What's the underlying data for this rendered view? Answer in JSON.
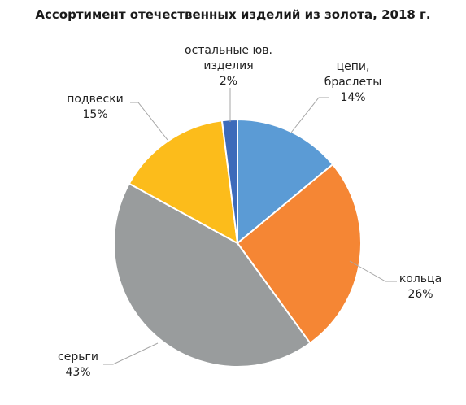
{
  "chart_data": {
    "type": "pie",
    "title": "Ассортимент отечественных изделий из золота, 2018 г.",
    "start_angle_deg": 0,
    "direction": "clockwise",
    "legend": "none",
    "slices": [
      {
        "label_lines": [
          "цепи,",
          "браслеты"
        ],
        "value": 14,
        "value_label": "14%",
        "color": "#5B9BD5"
      },
      {
        "label_lines": [
          "кольца"
        ],
        "value": 26,
        "value_label": "26%",
        "color": "#F58634"
      },
      {
        "label_lines": [
          "серьги"
        ],
        "value": 43,
        "value_label": "43%",
        "color": "#999C9D"
      },
      {
        "label_lines": [
          "подвески"
        ],
        "value": 15,
        "value_label": "15%",
        "color": "#FCBC1B"
      },
      {
        "label_lines": [
          "остальные юв.",
          "изделия"
        ],
        "value": 2,
        "value_label": "2%",
        "color": "#3D6BBA"
      }
    ]
  }
}
